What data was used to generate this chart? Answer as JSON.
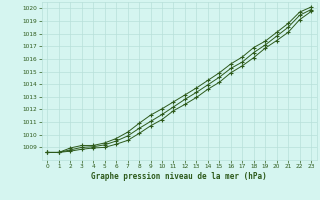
{
  "title": "Graphe pression niveau de la mer (hPa)",
  "bg_color": "#d5f5f0",
  "grid_color": "#b8e0da",
  "line_color": "#2d5a1b",
  "xlim": [
    -0.5,
    23.5
  ],
  "ylim": [
    1008.0,
    1020.5
  ],
  "yticks": [
    1009,
    1010,
    1011,
    1012,
    1013,
    1014,
    1015,
    1016,
    1017,
    1018,
    1019,
    1020
  ],
  "xticks": [
    0,
    1,
    2,
    3,
    4,
    5,
    6,
    7,
    8,
    9,
    10,
    11,
    12,
    13,
    14,
    15,
    16,
    17,
    18,
    19,
    20,
    21,
    22,
    23
  ],
  "line1": [
    1008.6,
    1008.6,
    1008.7,
    1008.85,
    1008.95,
    1009.0,
    1009.25,
    1009.55,
    1010.1,
    1010.7,
    1011.2,
    1011.9,
    1012.4,
    1012.95,
    1013.6,
    1014.15,
    1014.9,
    1015.45,
    1016.1,
    1016.85,
    1017.45,
    1018.1,
    1019.1,
    1019.75
  ],
  "line2": [
    1008.6,
    1008.6,
    1008.8,
    1009.0,
    1009.05,
    1009.2,
    1009.5,
    1009.9,
    1010.5,
    1011.05,
    1011.6,
    1012.2,
    1012.8,
    1013.35,
    1013.95,
    1014.55,
    1015.25,
    1015.75,
    1016.5,
    1017.1,
    1017.8,
    1018.5,
    1019.45,
    1019.9
  ],
  "line3": [
    1008.6,
    1008.6,
    1008.95,
    1009.15,
    1009.15,
    1009.35,
    1009.7,
    1010.2,
    1010.9,
    1011.55,
    1012.05,
    1012.6,
    1013.15,
    1013.7,
    1014.3,
    1014.9,
    1015.6,
    1016.15,
    1016.9,
    1017.4,
    1018.1,
    1018.8,
    1019.7,
    1020.1
  ]
}
